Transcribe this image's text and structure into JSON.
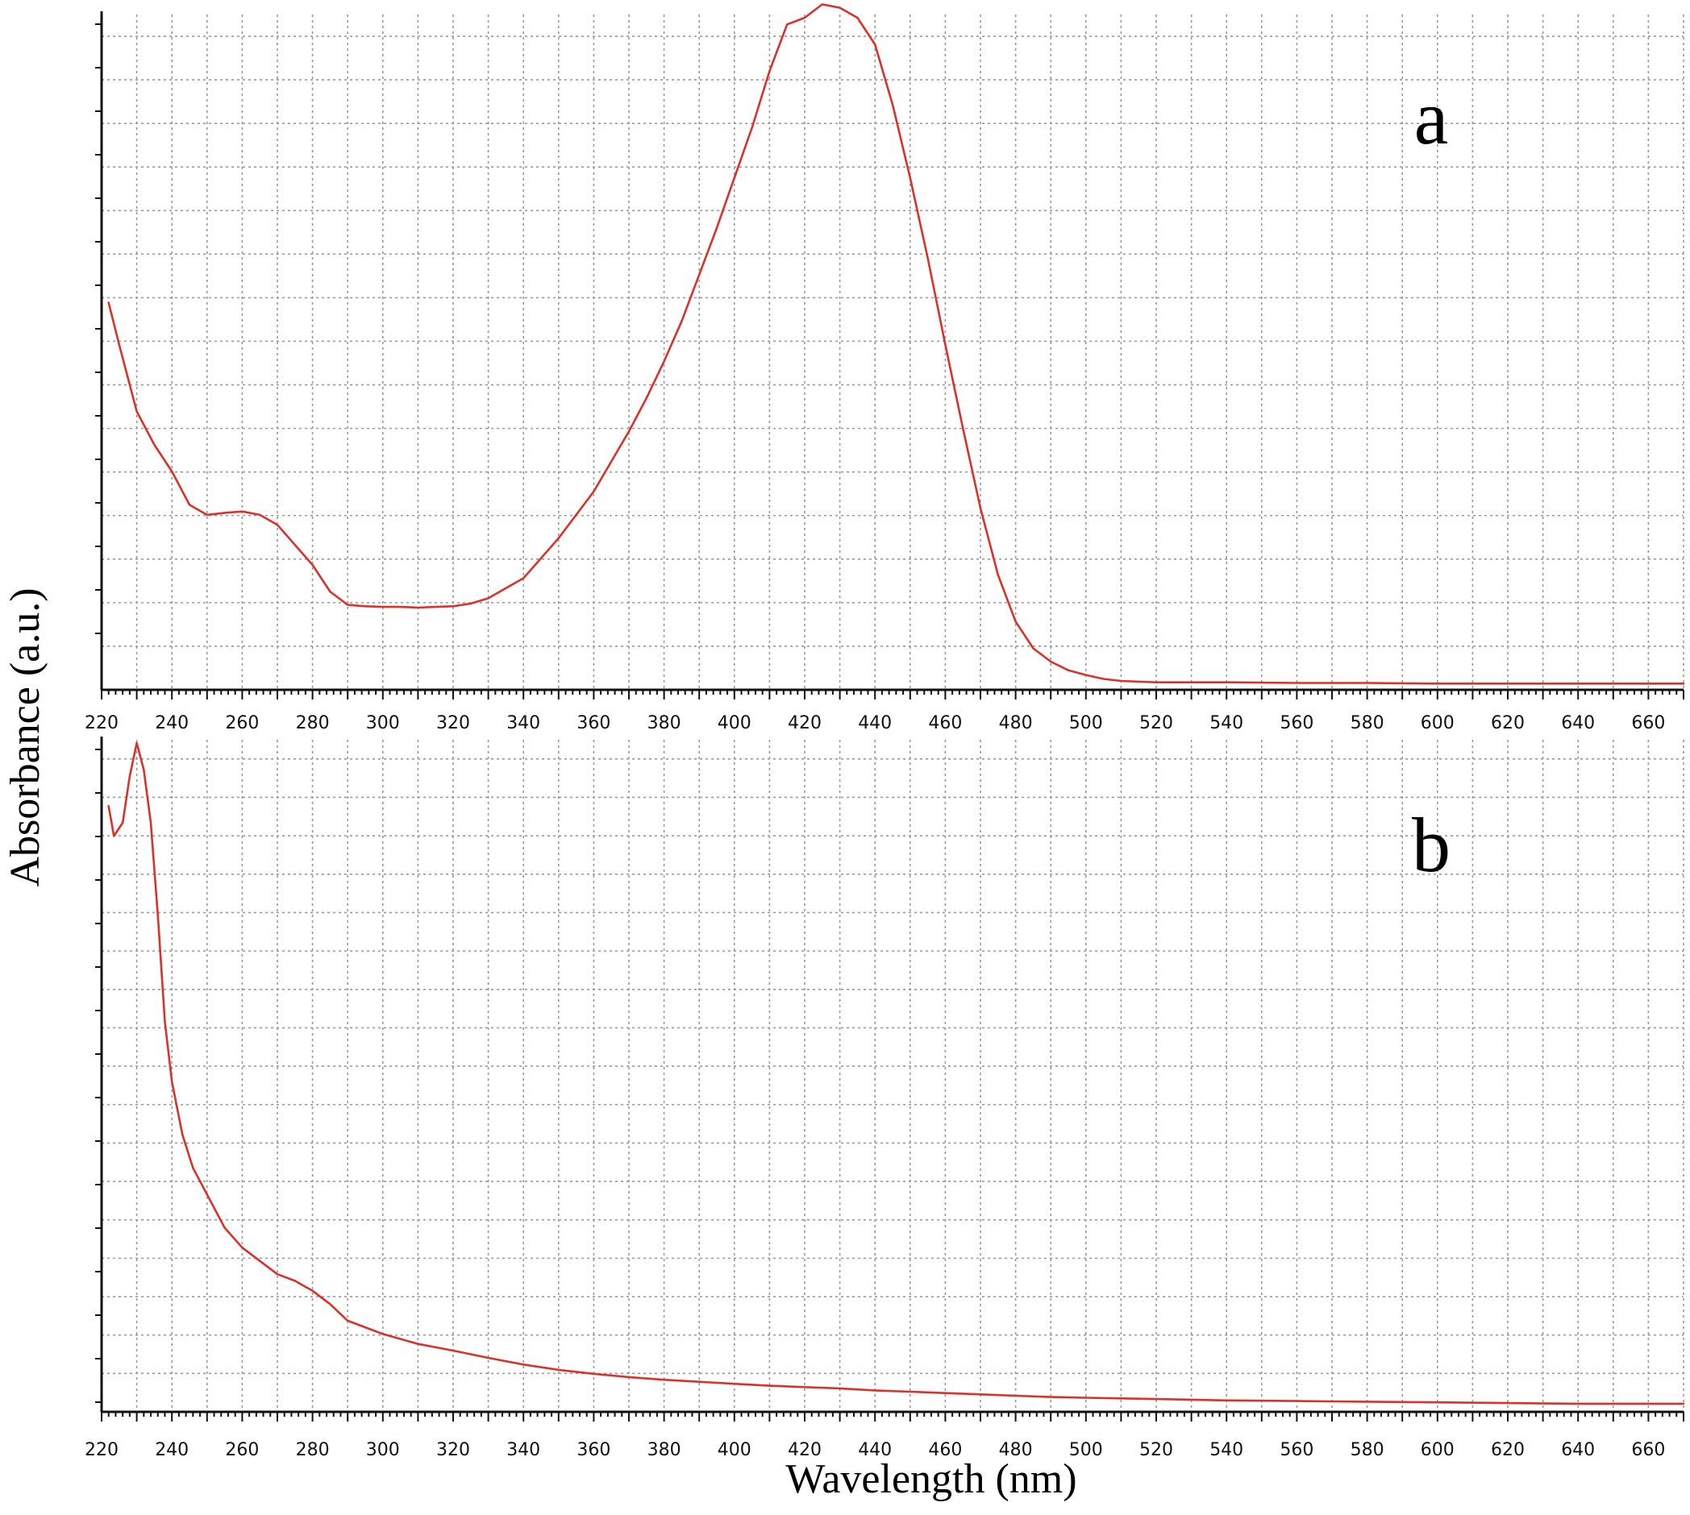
{
  "figure": {
    "xlabel": "Wavelength (nm)",
    "ylabel": "Absorbance (a.u.)",
    "line_color": "#d9322b",
    "grid": true
  },
  "chart_data": [
    {
      "type": "line",
      "panel_label": "a",
      "xlabel": "Wavelength (nm)",
      "ylabel": "Absorbance (a.u.)",
      "xlim": [
        220,
        670
      ],
      "ylim": [
        0,
        1
      ],
      "x_ticks": [
        "220",
        "240",
        "260",
        "280",
        "300",
        "320",
        "340",
        "360",
        "380",
        "400",
        "420",
        "440",
        "460",
        "480",
        "500",
        "520",
        "540",
        "560",
        "580",
        "600",
        "620",
        "640",
        "660"
      ],
      "y_tick_labels_shown": false,
      "series": [
        {
          "x": [
            222,
            225,
            230,
            235,
            240,
            245,
            250,
            255,
            260,
            265,
            270,
            275,
            280,
            285,
            290,
            295,
            300,
            305,
            310,
            315,
            320,
            325,
            330,
            335,
            340,
            345,
            350,
            355,
            360,
            365,
            370,
            375,
            380,
            385,
            390,
            395,
            400,
            405,
            410,
            415,
            420,
            425,
            430,
            435,
            440,
            445,
            450,
            455,
            460,
            465,
            470,
            475,
            480,
            485,
            490,
            495,
            500,
            505,
            510,
            520,
            540,
            560,
            580,
            600,
            620,
            640,
            660,
            670
          ],
          "y": [
            0.573,
            0.51,
            0.41,
            0.36,
            0.32,
            0.27,
            0.255,
            0.258,
            0.26,
            0.255,
            0.24,
            0.21,
            0.18,
            0.14,
            0.12,
            0.118,
            0.117,
            0.117,
            0.116,
            0.117,
            0.118,
            0.122,
            0.13,
            0.145,
            0.16,
            0.19,
            0.22,
            0.255,
            0.29,
            0.335,
            0.38,
            0.43,
            0.485,
            0.545,
            0.615,
            0.685,
            0.76,
            0.835,
            0.92,
            0.99,
            1.0,
            1.02,
            1.015,
            1.0,
            0.96,
            0.87,
            0.76,
            0.64,
            0.51,
            0.385,
            0.265,
            0.165,
            0.095,
            0.055,
            0.035,
            0.022,
            0.015,
            0.009,
            0.006,
            0.004,
            0.004,
            0.003,
            0.003,
            0.002,
            0.002,
            0.002,
            0.002,
            0.002
          ]
        }
      ]
    },
    {
      "type": "line",
      "panel_label": "b",
      "xlabel": "Wavelength (nm)",
      "ylabel": "Absorbance (a.u.)",
      "xlim": [
        220,
        670
      ],
      "ylim": [
        0,
        1
      ],
      "x_ticks": [
        "220",
        "240",
        "260",
        "280",
        "300",
        "320",
        "340",
        "360",
        "380",
        "400",
        "420",
        "440",
        "460",
        "480",
        "500",
        "520",
        "540",
        "560",
        "580",
        "600",
        "620",
        "640",
        "660"
      ],
      "y_tick_labels_shown": false,
      "series": [
        {
          "x": [
            222,
            223.5,
            226,
            228,
            230,
            232,
            234,
            236,
            238,
            240,
            243,
            246,
            250,
            255,
            260,
            265,
            270,
            275,
            280,
            285,
            290,
            295,
            300,
            310,
            320,
            330,
            340,
            350,
            360,
            370,
            380,
            390,
            400,
            410,
            420,
            430,
            440,
            450,
            460,
            470,
            480,
            490,
            500,
            520,
            540,
            560,
            580,
            600,
            620,
            640,
            660,
            670
          ],
          "y": [
            0.905,
            0.86,
            0.88,
            0.95,
            1.0,
            0.96,
            0.88,
            0.74,
            0.58,
            0.49,
            0.41,
            0.36,
            0.32,
            0.27,
            0.24,
            0.22,
            0.2,
            0.19,
            0.175,
            0.155,
            0.13,
            0.12,
            0.11,
            0.095,
            0.085,
            0.074,
            0.064,
            0.056,
            0.05,
            0.045,
            0.041,
            0.038,
            0.035,
            0.032,
            0.03,
            0.028,
            0.025,
            0.023,
            0.021,
            0.019,
            0.017,
            0.015,
            0.014,
            0.012,
            0.01,
            0.009,
            0.008,
            0.007,
            0.006,
            0.005,
            0.005,
            0.005
          ]
        }
      ]
    }
  ]
}
